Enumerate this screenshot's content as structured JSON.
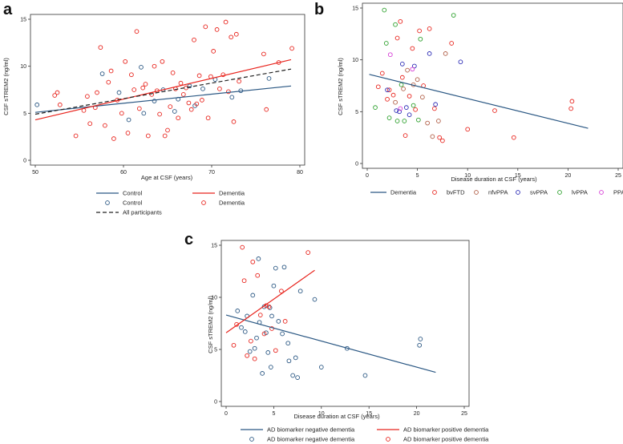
{
  "chart_data": [
    {
      "panel": "a",
      "type": "scatter",
      "xlabel": "Age at CSF (years)",
      "ylabel": "CSF sTREM2 (ng/ml)",
      "xlim": [
        50,
        80
      ],
      "ylim": [
        0,
        15
      ],
      "xticks": [
        50,
        60,
        70,
        80
      ],
      "yticks": [
        0,
        5,
        10,
        15
      ],
      "series": [
        {
          "name": "Control",
          "kind": "line",
          "color": "#2a5783",
          "points": [
            [
              50,
              5.1
            ],
            [
              79,
              7.9
            ]
          ]
        },
        {
          "name": "Dementia",
          "kind": "line",
          "color": "#e8241d",
          "points": [
            [
              50,
              4.3
            ],
            [
              79,
              10.7
            ]
          ]
        },
        {
          "name": "All participants",
          "kind": "dashed",
          "color": "#222222",
          "points": [
            [
              50,
              4.9
            ],
            [
              79,
              9.7
            ]
          ]
        },
        {
          "name": "Control",
          "kind": "points",
          "color": "#2a5783",
          "points": [
            [
              50.2,
              5.9
            ],
            [
              57.6,
              9.2
            ],
            [
              59.5,
              7.2
            ],
            [
              60.6,
              4.3
            ],
            [
              62.0,
              9.9
            ],
            [
              62.3,
              5.0
            ],
            [
              63.5,
              6.3
            ],
            [
              64.5,
              7.5
            ],
            [
              65.8,
              5.2
            ],
            [
              66.2,
              6.5
            ],
            [
              67.5,
              7.9
            ],
            [
              68.1,
              5.8
            ],
            [
              69.0,
              7.6
            ],
            [
              70.4,
              8.6
            ],
            [
              72.3,
              6.7
            ],
            [
              73.3,
              7.4
            ],
            [
              76.5,
              8.7
            ]
          ]
        },
        {
          "name": "Dementia",
          "kind": "points",
          "color": "#e8241d",
          "points": [
            [
              52.2,
              6.9
            ],
            [
              52.5,
              7.2
            ],
            [
              52.8,
              5.9
            ],
            [
              54.6,
              2.6
            ],
            [
              55.5,
              5.3
            ],
            [
              55.9,
              6.8
            ],
            [
              56.2,
              3.9
            ],
            [
              56.8,
              5.6
            ],
            [
              57.0,
              7.2
            ],
            [
              57.4,
              12.0
            ],
            [
              57.9,
              3.7
            ],
            [
              58.3,
              8.3
            ],
            [
              58.6,
              9.5
            ],
            [
              58.9,
              2.3
            ],
            [
              59.3,
              6.4
            ],
            [
              59.8,
              5.0
            ],
            [
              60.2,
              10.5
            ],
            [
              60.5,
              2.9
            ],
            [
              60.9,
              9.1
            ],
            [
              61.2,
              7.5
            ],
            [
              61.5,
              13.7
            ],
            [
              61.8,
              5.5
            ],
            [
              62.2,
              7.7
            ],
            [
              62.5,
              8.1
            ],
            [
              62.8,
              2.6
            ],
            [
              63.2,
              7.0
            ],
            [
              63.5,
              10.0
            ],
            [
              63.8,
              7.4
            ],
            [
              64.1,
              4.9
            ],
            [
              64.4,
              10.5
            ],
            [
              64.7,
              2.6
            ],
            [
              65.0,
              3.2
            ],
            [
              65.3,
              5.7
            ],
            [
              65.6,
              9.3
            ],
            [
              65.9,
              7.6
            ],
            [
              66.2,
              4.5
            ],
            [
              66.5,
              8.2
            ],
            [
              66.8,
              7.0
            ],
            [
              67.1,
              7.7
            ],
            [
              67.4,
              6.1
            ],
            [
              67.7,
              5.4
            ],
            [
              68.0,
              12.8
            ],
            [
              68.3,
              6.0
            ],
            [
              68.6,
              9.0
            ],
            [
              68.9,
              6.4
            ],
            [
              69.3,
              14.2
            ],
            [
              69.6,
              4.5
            ],
            [
              69.9,
              8.9
            ],
            [
              70.2,
              11.6
            ],
            [
              70.6,
              13.9
            ],
            [
              70.9,
              7.6
            ],
            [
              71.3,
              9.1
            ],
            [
              71.6,
              14.7
            ],
            [
              71.9,
              7.3
            ],
            [
              72.2,
              13.1
            ],
            [
              72.5,
              4.1
            ],
            [
              72.8,
              13.4
            ],
            [
              73.1,
              8.4
            ],
            [
              75.9,
              11.3
            ],
            [
              76.2,
              5.4
            ],
            [
              77.6,
              10.4
            ],
            [
              79.1,
              11.9
            ]
          ]
        }
      ],
      "legend": [
        {
          "label": "Control",
          "kind": "line",
          "color": "#2a5783"
        },
        {
          "label": "Dementia",
          "kind": "line",
          "color": "#e8241d"
        },
        {
          "label": "Control",
          "kind": "circle",
          "color": "#2a5783"
        },
        {
          "label": "Dementia",
          "kind": "circle",
          "color": "#e8241d"
        },
        {
          "label": "All participants",
          "kind": "dashed",
          "color": "#222222"
        }
      ]
    },
    {
      "panel": "b",
      "type": "scatter",
      "xlabel": "Disease duration at CSF (years)",
      "ylabel": "CSF sTREM2 (ng/ml)",
      "xlim": [
        0,
        25
      ],
      "ylim": [
        0,
        15
      ],
      "xticks": [
        0,
        5,
        10,
        15,
        20,
        25
      ],
      "yticks": [
        0,
        5,
        10,
        15
      ],
      "series": [
        {
          "name": "Dementia",
          "kind": "line",
          "color": "#2a5783",
          "points": [
            [
              0.2,
              8.6
            ],
            [
              22,
              3.4
            ]
          ]
        },
        {
          "name": "bvFTD",
          "kind": "points",
          "color": "#e8241d",
          "points": [
            [
              1.1,
              7.4
            ],
            [
              1.5,
              8.7
            ],
            [
              2.0,
              6.2
            ],
            [
              2.2,
              7.1
            ],
            [
              2.6,
              6.6
            ],
            [
              3.0,
              12.1
            ],
            [
              3.3,
              13.7
            ],
            [
              3.5,
              8.3
            ],
            [
              3.8,
              2.7
            ],
            [
              4.2,
              6.5
            ],
            [
              4.5,
              11.1
            ],
            [
              4.8,
              5.2
            ],
            [
              5.2,
              12.8
            ],
            [
              5.6,
              7.5
            ],
            [
              6.2,
              13.0
            ],
            [
              6.7,
              5.3
            ],
            [
              7.2,
              2.5
            ],
            [
              7.5,
              2.2
            ],
            [
              8.4,
              11.6
            ],
            [
              10.0,
              3.3
            ],
            [
              12.7,
              5.1
            ],
            [
              14.6,
              2.5
            ],
            [
              20.3,
              5.3
            ],
            [
              20.4,
              6.0
            ]
          ]
        },
        {
          "name": "nfvPPA",
          "kind": "points",
          "color": "#b05d45",
          "points": [
            [
              2.8,
              5.9
            ],
            [
              3.6,
              7.2
            ],
            [
              4.0,
              9.0
            ],
            [
              4.6,
              7.6
            ],
            [
              5.0,
              8.1
            ],
            [
              5.5,
              6.4
            ],
            [
              6.0,
              3.9
            ],
            [
              6.5,
              2.6
            ],
            [
              7.1,
              4.1
            ],
            [
              7.8,
              10.6
            ]
          ]
        },
        {
          "name": "svPPA",
          "kind": "points",
          "color": "#2a2ab5",
          "points": [
            [
              2.0,
              7.1
            ],
            [
              2.9,
              5.1
            ],
            [
              3.2,
              5.0
            ],
            [
              3.5,
              9.6
            ],
            [
              3.9,
              5.4
            ],
            [
              4.2,
              4.7
            ],
            [
              4.7,
              9.4
            ],
            [
              6.8,
              5.7
            ],
            [
              6.2,
              10.6
            ],
            [
              9.3,
              9.8
            ]
          ]
        },
        {
          "name": "lvPPA",
          "kind": "points",
          "color": "#2ca02c",
          "points": [
            [
              0.8,
              5.4
            ],
            [
              1.7,
              14.8
            ],
            [
              1.9,
              11.6
            ],
            [
              2.2,
              4.4
            ],
            [
              2.8,
              13.4
            ],
            [
              3.0,
              4.1
            ],
            [
              3.4,
              7.6
            ],
            [
              3.7,
              4.1
            ],
            [
              4.6,
              5.6
            ],
            [
              5.3,
              12.0
            ],
            [
              5.1,
              4.2
            ],
            [
              8.6,
              14.3
            ]
          ]
        },
        {
          "name": "PPA-NOS",
          "kind": "points",
          "color": "#d63bd6",
          "points": [
            [
              2.3,
              10.5
            ],
            [
              3.3,
              5.3
            ],
            [
              4.5,
              9.1
            ]
          ]
        }
      ],
      "legend": [
        {
          "label": "Dementia",
          "kind": "line",
          "color": "#2a5783"
        },
        {
          "label": "bvFTD",
          "kind": "circle",
          "color": "#e8241d"
        },
        {
          "label": "nfvPPA",
          "kind": "circle",
          "color": "#b05d45"
        },
        {
          "label": "svPPA",
          "kind": "circle",
          "color": "#2a2ab5"
        },
        {
          "label": "lvPPA",
          "kind": "circle",
          "color": "#2ca02c"
        },
        {
          "label": "PPA-NOS",
          "kind": "circle",
          "color": "#d63bd6"
        }
      ]
    },
    {
      "panel": "c",
      "type": "scatter",
      "xlabel": "Disease duration at CSF (years)",
      "ylabel": "CSF sTREM2 (ng/ml)",
      "xlim": [
        0,
        25
      ],
      "ylim": [
        0,
        15
      ],
      "xticks": [
        0,
        5,
        10,
        15,
        20,
        25
      ],
      "yticks": [
        0,
        5,
        10,
        15
      ],
      "series": [
        {
          "name": "AD biomarker negative dementia",
          "kind": "line",
          "color": "#2a5783",
          "points": [
            [
              0,
              8.3
            ],
            [
              22,
              2.8
            ]
          ]
        },
        {
          "name": "AD biomarker positive dementia",
          "kind": "line",
          "color": "#e8241d",
          "points": [
            [
              0,
              6.6
            ],
            [
              9.3,
              12.6
            ]
          ]
        },
        {
          "name": "AD biomarker negative dementia",
          "kind": "points",
          "color": "#2a5783",
          "points": [
            [
              1.2,
              8.7
            ],
            [
              1.6,
              7.1
            ],
            [
              2.0,
              6.7
            ],
            [
              2.2,
              8.2
            ],
            [
              2.5,
              4.8
            ],
            [
              2.8,
              10.2
            ],
            [
              3.0,
              5.1
            ],
            [
              3.2,
              6.1
            ],
            [
              3.4,
              13.7
            ],
            [
              3.5,
              7.6
            ],
            [
              3.8,
              2.7
            ],
            [
              4.0,
              9.1
            ],
            [
              4.2,
              6.6
            ],
            [
              4.4,
              4.7
            ],
            [
              4.6,
              9.0
            ],
            [
              4.8,
              8.2
            ],
            [
              5.0,
              11.1
            ],
            [
              5.2,
              12.8
            ],
            [
              5.5,
              7.7
            ],
            [
              5.9,
              6.5
            ],
            [
              6.1,
              12.9
            ],
            [
              6.5,
              5.6
            ],
            [
              6.6,
              3.9
            ],
            [
              7.0,
              2.5
            ],
            [
              7.3,
              4.2
            ],
            [
              7.5,
              2.3
            ],
            [
              7.8,
              10.6
            ],
            [
              9.3,
              9.8
            ],
            [
              10.0,
              3.3
            ],
            [
              12.7,
              5.1
            ],
            [
              14.6,
              2.5
            ],
            [
              20.3,
              5.4
            ],
            [
              20.4,
              6.0
            ],
            [
              4.7,
              3.3
            ]
          ]
        },
        {
          "name": "AD biomarker positive dementia",
          "kind": "points",
          "color": "#e8241d",
          "points": [
            [
              0.8,
              5.4
            ],
            [
              1.1,
              7.4
            ],
            [
              1.7,
              14.8
            ],
            [
              1.9,
              11.6
            ],
            [
              2.2,
              4.4
            ],
            [
              2.6,
              5.8
            ],
            [
              2.8,
              13.4
            ],
            [
              3.0,
              4.1
            ],
            [
              3.3,
              12.1
            ],
            [
              3.6,
              8.3
            ],
            [
              4.2,
              9.2
            ],
            [
              4.5,
              9.1
            ],
            [
              4.8,
              7.0
            ],
            [
              5.2,
              4.9
            ],
            [
              5.8,
              10.6
            ],
            [
              6.2,
              7.7
            ],
            [
              8.6,
              14.3
            ],
            [
              4.0,
              6.5
            ]
          ]
        }
      ],
      "legend": [
        {
          "label": "AD biomarker negative dementia",
          "kind": "line",
          "color": "#2a5783"
        },
        {
          "label": "AD biomarker positive dementia",
          "kind": "line",
          "color": "#e8241d"
        },
        {
          "label": "AD biomarker negative dementia",
          "kind": "circle",
          "color": "#2a5783"
        },
        {
          "label": "AD biomarker positive dementia",
          "kind": "circle",
          "color": "#e8241d"
        }
      ]
    }
  ]
}
